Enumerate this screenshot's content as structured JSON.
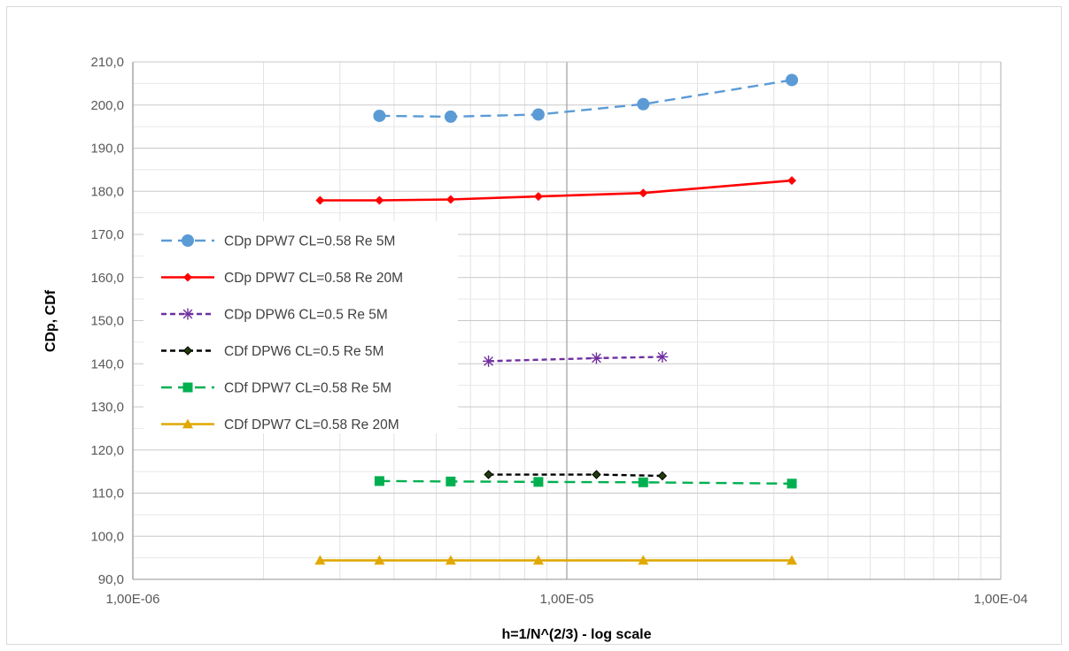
{
  "chart_data": {
    "type": "line",
    "title": "",
    "xlabel": "h=1/N^(2/3) - log scale",
    "ylabel": "CDp, CDf",
    "x_scale": "log",
    "xlim": [
      1e-06,
      0.0001
    ],
    "ylim": [
      90,
      210
    ],
    "y_tick_step": 10,
    "x_tick_labels": [
      "1,00E-06",
      "1,00E-05",
      "1,00E-04"
    ],
    "y_tick_labels": [
      "90,0",
      "100,0",
      "110,0",
      "120,0",
      "130,0",
      "140,0",
      "150,0",
      "160,0",
      "170,0",
      "180,0",
      "190,0",
      "200,0",
      "210,0"
    ],
    "grid": true,
    "legend_position": "left",
    "series": [
      {
        "name": "CDp DPW7 CL=0.58 Re 5M",
        "color": "#5b9bd5",
        "dash": "dashed",
        "marker": "circle",
        "x": [
          3.7e-06,
          5.4e-06,
          8.6e-06,
          1.5e-05,
          3.3e-05
        ],
        "y": [
          197.5,
          197.3,
          197.8,
          200.2,
          205.8
        ]
      },
      {
        "name": "CDp DPW7 CL=0.58 Re 20M",
        "color": "#ff0000",
        "dash": "solid",
        "marker": "diamond",
        "x": [
          2.7e-06,
          3.7e-06,
          5.4e-06,
          8.6e-06,
          1.5e-05,
          3.3e-05
        ],
        "y": [
          177.9,
          177.9,
          178.1,
          178.8,
          179.6,
          182.5
        ]
      },
      {
        "name": "CDp DPW6 CL=0.5 Re 5M",
        "color": "#7030a0",
        "dash": "dashed",
        "marker": "star",
        "x": [
          6.6e-06,
          1.17e-05,
          1.66e-05
        ],
        "y": [
          140.6,
          141.3,
          141.6
        ]
      },
      {
        "name": "CDf DPW6 CL=0.5 Re 5M",
        "color": "#000000",
        "dash": "dashed",
        "marker": "diamond-small",
        "x": [
          6.6e-06,
          1.17e-05,
          1.66e-05
        ],
        "y": [
          114.3,
          114.3,
          114.0
        ]
      },
      {
        "name": "CDf DPW7 CL=0.58 Re 5M",
        "color": "#00b050",
        "dash": "dashed",
        "marker": "square",
        "x": [
          3.7e-06,
          5.4e-06,
          8.6e-06,
          1.5e-05,
          3.3e-05
        ],
        "y": [
          112.8,
          112.7,
          112.6,
          112.5,
          112.2
        ]
      },
      {
        "name": "CDf DPW7 CL=0.58 Re 20M",
        "color": "#e0a800",
        "dash": "solid",
        "marker": "triangle",
        "x": [
          2.7e-06,
          3.7e-06,
          5.4e-06,
          8.6e-06,
          1.5e-05,
          3.3e-05
        ],
        "y": [
          94.4,
          94.4,
          94.4,
          94.4,
          94.4,
          94.4
        ]
      }
    ]
  }
}
